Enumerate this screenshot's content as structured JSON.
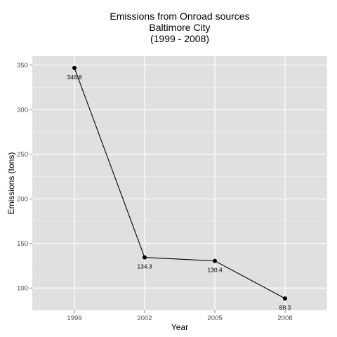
{
  "chart_data": {
    "type": "line",
    "title_lines": [
      "Emissions from Onroad sources",
      "Baltimore City",
      "(1999 - 2008)"
    ],
    "xlabel": "Year",
    "ylabel": "Emissions (tons)",
    "x": [
      1999,
      2002,
      2005,
      2008
    ],
    "x_tick_labels": [
      "1999",
      "2002",
      "2005",
      "2008"
    ],
    "series": [
      {
        "values": [
          346.8,
          134.3,
          130.4,
          88.3
        ],
        "labels": [
          "346.8",
          "134.3",
          "130.4",
          "88.3"
        ]
      }
    ],
    "ylim": [
      75,
      360
    ],
    "y_ticks": [
      100,
      150,
      200,
      250,
      300,
      350
    ],
    "y_tick_labels": [
      "100",
      "150",
      "200",
      "250",
      "300",
      "350"
    ],
    "grid": true,
    "colors": {
      "panel": "#e0e0e0",
      "grid_major": "#ffffff",
      "grid_minor": "#f0f0f0",
      "line": "#000000",
      "point": "#000000"
    }
  }
}
